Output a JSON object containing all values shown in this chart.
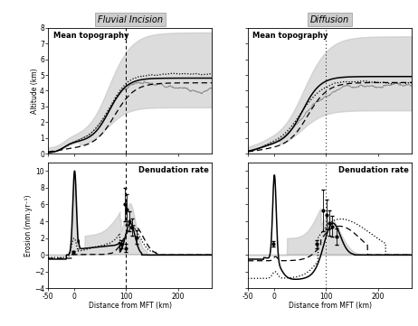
{
  "title_left": "Fluvial Incision",
  "title_right": "Diffusion",
  "xlabel": "Distance from MFT (km)",
  "ylabel_top": "Altitude (km)",
  "ylabel_bottom": "Erosion (mm.yr⁻¹)",
  "label_topo": "Mean topography",
  "label_denud": "Denudation rate",
  "xlim": [
    -50,
    265
  ],
  "ylim_topo": [
    0,
    8
  ],
  "ylim_ero": [
    -4,
    11
  ],
  "xticks": [
    -50,
    0,
    100,
    200
  ],
  "xtick_labels": [
    "-50",
    "0",
    "100",
    "200"
  ],
  "yticks_topo": [
    0,
    1,
    2,
    3,
    4,
    5,
    6,
    7,
    8
  ],
  "yticks_ero": [
    -4,
    -2,
    0,
    2,
    4,
    6,
    8,
    10
  ],
  "vline_x": 100,
  "background": "#ffffff",
  "gray_fill": "#c0c0c0",
  "gray_fill_alpha": 0.55,
  "solid_color": "#000000",
  "dashed_color": "#000000",
  "dotted_color": "#000000",
  "gray_line_color": "#888888",
  "title_box_color": "#cccccc",
  "title_box_edge": "#999999"
}
